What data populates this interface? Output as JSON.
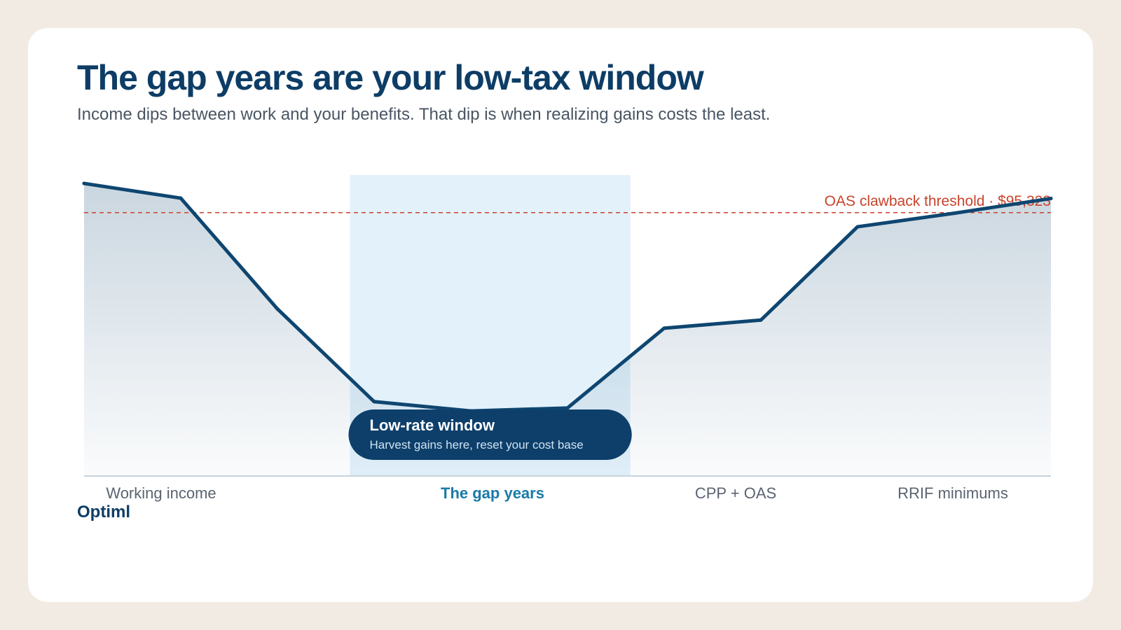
{
  "header": {
    "title": "The gap years are your low-tax window",
    "subtitle": "Income dips between work and your benefits. That dip is when realizing gains costs the least."
  },
  "brand": {
    "name": "Optiml"
  },
  "colors": {
    "line": "#0e4670",
    "threshold": "#c8432b",
    "highlight": "#e3f1fa",
    "callout": "#0e3f6b",
    "active_label": "#1a7aa8",
    "phase_label": "#5a6470"
  },
  "chart_data": {
    "type": "area",
    "y_unit": "$",
    "series": [
      {
        "values": [
          0.972,
          0.923,
          0.555,
          0.247,
          0.216,
          0.226,
          0.491,
          0.518,
          0.828,
          0.873,
          0.922
        ]
      }
    ],
    "ylim": [
      0,
      1
    ],
    "threshold": {
      "label": "OAS clawback threshold · $95,323",
      "value": 0.875
    },
    "phases": [
      {
        "label": "Working income",
        "active": false
      },
      {
        "label": "The gap years",
        "active": true
      },
      {
        "label": "CPP + OAS",
        "active": false
      },
      {
        "label": "RRIF minimums",
        "active": false
      }
    ],
    "highlight_range": [
      2.75,
      5.65
    ],
    "callout": {
      "title": "Low-rate window",
      "subtitle": "Harvest gains here, reset your cost base"
    },
    "grid": false,
    "legend": "none"
  }
}
